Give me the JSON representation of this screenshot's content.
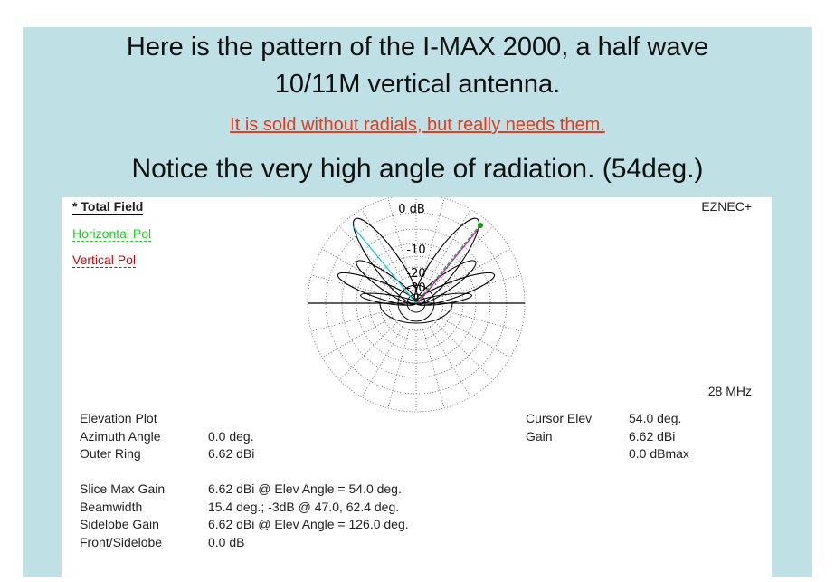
{
  "header": {
    "title_line1": "Here is the pattern of the I-MAX 2000, a half wave",
    "title_line2": "10/11M vertical antenna.",
    "link": "It is sold without radials, but really needs them.",
    "notice": "Notice the very high angle of radiation. (54deg.)"
  },
  "plot": {
    "legend": [
      "* Total Field",
      "Horizontal Pol",
      "Vertical Pol"
    ],
    "brand": "EZNEC+",
    "frequency": "28 MHz",
    "ring_labels": [
      "0 dB",
      "-10",
      "-20",
      "-30"
    ]
  },
  "readout": {
    "left": [
      [
        "Elevation Plot"
      ],
      [
        "Azimuth Angle",
        "0.0 deg."
      ],
      [
        "Outer Ring",
        "6.62 dBi"
      ]
    ],
    "left2": [
      [
        "Slice Max Gain",
        "6.62 dBi @ Elev Angle = 54.0 deg."
      ],
      [
        "Beamwidth",
        "15.4 deg.; -3dB @ 47.0, 62.4 deg."
      ],
      [
        "Sidelobe Gain",
        "6.62 dBi @ Elev Angle = 126.0 deg."
      ],
      [
        "Front/Sidelobe",
        "0.0 dB"
      ]
    ],
    "right_labels": [
      "Cursor Elev",
      "Gain"
    ],
    "right_values": [
      "54.0 deg.",
      "6.62 dBi",
      "0.0 dBmax"
    ]
  }
}
